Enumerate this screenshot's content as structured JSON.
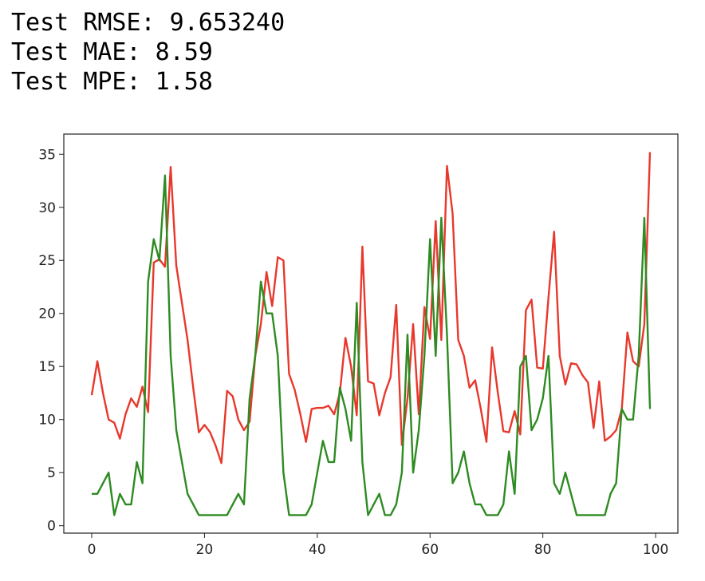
{
  "output_lines": [
    "Test RMSE: 9.653240",
    "Test MAE: 8.59",
    "Test MPE: 1.58"
  ],
  "chart_data": {
    "type": "line",
    "x": [
      0,
      1,
      2,
      3,
      4,
      5,
      6,
      7,
      8,
      9,
      10,
      11,
      12,
      13,
      14,
      15,
      16,
      17,
      18,
      19,
      20,
      21,
      22,
      23,
      24,
      25,
      26,
      27,
      28,
      29,
      30,
      31,
      32,
      33,
      34,
      35,
      36,
      37,
      38,
      39,
      40,
      41,
      42,
      43,
      44,
      45,
      46,
      47,
      48,
      49,
      50,
      51,
      52,
      53,
      54,
      55,
      56,
      57,
      58,
      59,
      60,
      61,
      62,
      63,
      64,
      65,
      66,
      67,
      68,
      69,
      70,
      71,
      72,
      73,
      74,
      75,
      76,
      77,
      78,
      79,
      80,
      81,
      82,
      83,
      84,
      85,
      86,
      87,
      88,
      89,
      90,
      91,
      92,
      93,
      94,
      95,
      96,
      97,
      98,
      99
    ],
    "series": [
      {
        "color": "#e8382c",
        "values": [
          12.3,
          15.5,
          12.5,
          10,
          9.7,
          8.2,
          10.5,
          12,
          11.2,
          13.1,
          10.7,
          24.8,
          25.1,
          24.4,
          33.8,
          24.5,
          21,
          17.5,
          13,
          8.8,
          9.5,
          8.8,
          7.5,
          5.9,
          12.7,
          12.2,
          10,
          9,
          9.8,
          16,
          19,
          23.9,
          20.7,
          25.3,
          25,
          14.3,
          12.8,
          10.5,
          7.9,
          11,
          11.1,
          11.1,
          11.3,
          10.5,
          12.5,
          17.7,
          15,
          10.4,
          26.3,
          13.6,
          13.4,
          10.4,
          12.5,
          14,
          20.8,
          7.6,
          12,
          19,
          10.5,
          20.6,
          17.6,
          28.7,
          17.5,
          33.9,
          29.4,
          17.5,
          16,
          13,
          13.7,
          11,
          7.9,
          16.8,
          12.6,
          8.9,
          8.8,
          10.8,
          8.6,
          20.3,
          21.3,
          14.9,
          14.8,
          21.5,
          27.7,
          16,
          13.3,
          15.3,
          15.2,
          14.2,
          13.5,
          9.2,
          13.6,
          8,
          8.4,
          9,
          11,
          18.2,
          15.5,
          15,
          19,
          35.2
        ]
      },
      {
        "color": "#2e8b22",
        "values": [
          3,
          3,
          4,
          5,
          1,
          3,
          2,
          2,
          6,
          4,
          23,
          27,
          25,
          33,
          16,
          9,
          6,
          3,
          2,
          1,
          1,
          1,
          1,
          1,
          1,
          2,
          3,
          2,
          12,
          16,
          23,
          20,
          20,
          16,
          5,
          1,
          1,
          1,
          1,
          2,
          5,
          8,
          6,
          6,
          13,
          11,
          8,
          21,
          6,
          1,
          2,
          3,
          1,
          1,
          2,
          5,
          18,
          5,
          9,
          16,
          27,
          16,
          29,
          18,
          4,
          5,
          7,
          4,
          2,
          2,
          1,
          1,
          1,
          2,
          7,
          3,
          15,
          16,
          9,
          10,
          12,
          16,
          4,
          3,
          5,
          3,
          1,
          1,
          1,
          1,
          1,
          1,
          3,
          4,
          11,
          10,
          10,
          16,
          29,
          11
        ]
      }
    ],
    "xlim": [
      -4.95,
      103.95
    ],
    "ylim": [
      -0.7,
      36.9
    ],
    "xticks": [
      0,
      20,
      40,
      60,
      80,
      100
    ],
    "yticks": [
      0,
      5,
      10,
      15,
      20,
      25,
      30,
      35
    ]
  }
}
